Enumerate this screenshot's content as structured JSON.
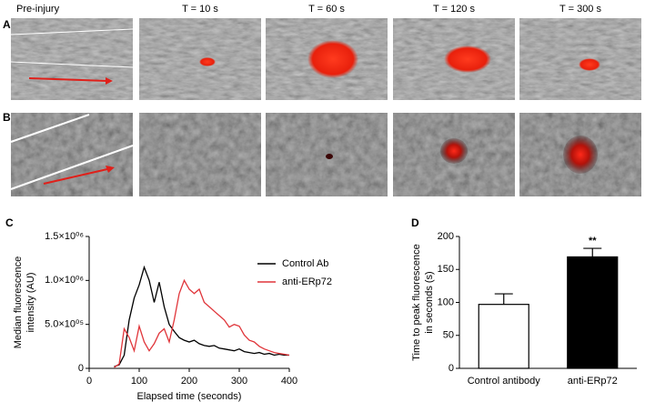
{
  "figure": {
    "panel_labels": [
      "A",
      "B",
      "C",
      "D"
    ],
    "column_labels": [
      "Pre-injury",
      "T = 10 s",
      "T = 60 s",
      "T = 120 s",
      "T = 300 s"
    ]
  },
  "chart_data": [
    {
      "type": "line",
      "xlabel": "Elapsed time (seconds)",
      "ylabel": [
        "Median fluorescence",
        "intensity (AU)"
      ],
      "x": [
        50,
        60,
        70,
        80,
        90,
        100,
        110,
        120,
        130,
        140,
        150,
        160,
        170,
        180,
        190,
        200,
        210,
        220,
        230,
        240,
        250,
        260,
        270,
        280,
        290,
        300,
        310,
        320,
        330,
        340,
        350,
        360,
        370,
        380,
        390,
        400
      ],
      "series": [
        {
          "name": "Control Ab",
          "color": "#000000",
          "values": [
            20000,
            40000,
            150000,
            550000,
            800000,
            950000,
            1150000,
            1000000,
            750000,
            980000,
            700000,
            500000,
            420000,
            350000,
            320000,
            300000,
            320000,
            280000,
            260000,
            250000,
            260000,
            230000,
            220000,
            210000,
            200000,
            220000,
            190000,
            180000,
            170000,
            180000,
            160000,
            170000,
            150000,
            160000,
            150000,
            150000
          ]
        },
        {
          "name": "anti-ERp72",
          "color": "#e0353a",
          "values": [
            10000,
            50000,
            450000,
            350000,
            200000,
            480000,
            300000,
            200000,
            280000,
            400000,
            450000,
            300000,
            550000,
            850000,
            1000000,
            900000,
            850000,
            900000,
            750000,
            700000,
            650000,
            600000,
            550000,
            470000,
            500000,
            480000,
            380000,
            320000,
            300000,
            250000,
            220000,
            200000,
            180000,
            170000,
            160000,
            150000
          ]
        }
      ],
      "xlim": [
        0,
        400
      ],
      "xticks": [
        0,
        100,
        200,
        300,
        400
      ],
      "ylim": [
        0,
        1500000
      ],
      "yticks": [
        0,
        {
          "value": 500000,
          "label": "5.0×10⁰⁵"
        },
        {
          "value": 1000000,
          "label": "1.0×10⁰⁶"
        },
        {
          "value": 1500000,
          "label": "1.5×10⁰⁶"
        }
      ],
      "legend": "upper right"
    },
    {
      "type": "bar",
      "ylabel": [
        "Time to peak fluorescence",
        "in seconds (s)"
      ],
      "categories": [
        "Control antibody",
        "anti-ERp72"
      ],
      "values": [
        97,
        169
      ],
      "errors": [
        16,
        13
      ],
      "colors": [
        "#ffffff",
        "#000000"
      ],
      "edgecolor": "#000000",
      "significance": [
        null,
        "**"
      ],
      "ylim": [
        0,
        200
      ],
      "yticks": [
        0,
        50,
        100,
        150,
        200
      ]
    }
  ]
}
